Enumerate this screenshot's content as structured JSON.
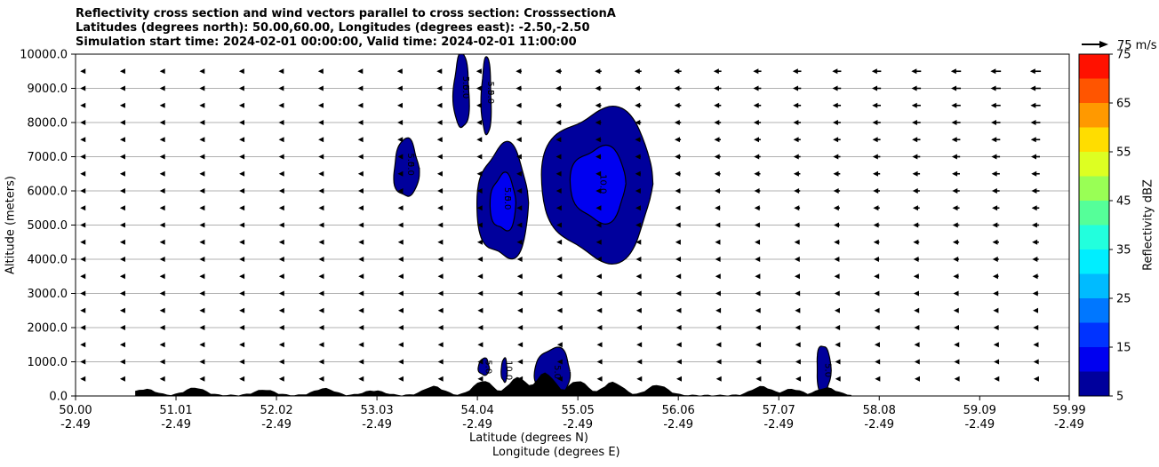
{
  "figure": {
    "title_lines": [
      "Reflectivity cross section and wind vectors parallel to cross section: CrosssectionA",
      "Latitudes (degrees north): 50.00,60.00, Longitudes (degrees east): -2.50,-2.50",
      "Simulation start time: 2024-02-01 00:00:00, Valid time: 2024-02-01 11:00:00"
    ]
  },
  "chart_data": {
    "type": "heatmap",
    "subtype": "vertical cross section (filled contours + wind vectors)",
    "xlabel_lines": [
      "Latitude (degrees N)",
      "Longitude (degrees E)"
    ],
    "ylabel": "Altitude (meters)",
    "xlim": [
      50.0,
      59.99
    ],
    "ylim": [
      0,
      10000
    ],
    "x_ticks": [
      {
        "lat": "50.00",
        "lon": "-2.49",
        "value": 50.0
      },
      {
        "lat": "51.01",
        "lon": "-2.49",
        "value": 51.01
      },
      {
        "lat": "52.02",
        "lon": "-2.49",
        "value": 52.02
      },
      {
        "lat": "53.03",
        "lon": "-2.49",
        "value": 53.03
      },
      {
        "lat": "54.04",
        "lon": "-2.49",
        "value": 54.04
      },
      {
        "lat": "55.05",
        "lon": "-2.49",
        "value": 55.05
      },
      {
        "lat": "56.06",
        "lon": "-2.49",
        "value": 56.06
      },
      {
        "lat": "57.07",
        "lon": "-2.49",
        "value": 57.07
      },
      {
        "lat": "58.08",
        "lon": "-2.49",
        "value": 58.08
      },
      {
        "lat": "59.09",
        "lon": "-2.49",
        "value": 59.09
      },
      {
        "lat": "59.99",
        "lon": "-2.49",
        "value": 59.99
      }
    ],
    "y_ticks": [
      {
        "label": "0.0",
        "value": 0
      },
      {
        "label": "1000.0",
        "value": 1000
      },
      {
        "label": "2000.0",
        "value": 2000
      },
      {
        "label": "3000.0",
        "value": 3000
      },
      {
        "label": "4000.0",
        "value": 4000
      },
      {
        "label": "5000.0",
        "value": 5000
      },
      {
        "label": "6000.0",
        "value": 6000
      },
      {
        "label": "7000.0",
        "value": 7000
      },
      {
        "label": "8000.0",
        "value": 8000
      },
      {
        "label": "9000.0",
        "value": 9000
      },
      {
        "label": "10000.0",
        "value": 10000
      }
    ],
    "grid": "horizontal",
    "colorbar": {
      "label": "Reflectivity dBZ",
      "min": 5,
      "max": 75,
      "tick_values": [
        5,
        15,
        25,
        35,
        45,
        55,
        65,
        75
      ],
      "levels": [
        5,
        10,
        15,
        20,
        25,
        30,
        35,
        40,
        45,
        50,
        55,
        60,
        65,
        70,
        75
      ],
      "colors": [
        "#00009c",
        "#0000f0",
        "#0033ff",
        "#0077ff",
        "#00bbff",
        "#00eeff",
        "#22ffdd",
        "#55ff99",
        "#99ff55",
        "#ddff22",
        "#ffdd00",
        "#ff9900",
        "#ff5500",
        "#ff1100",
        "#aa0000"
      ]
    },
    "contour_labels": [
      "5.0",
      "5.0",
      "5.0",
      "5.0",
      "10.0",
      "5.0",
      "10.0",
      "5.0",
      "5.0",
      "5.0",
      "5.0",
      "5.0",
      "5.0"
    ],
    "reflectivity_cells": [
      {
        "lat": [
          53.8,
          53.96
        ],
        "alt": [
          7800,
          10000
        ],
        "max_dbz": 10
      },
      {
        "lat": [
          54.08,
          54.18
        ],
        "alt": [
          7600,
          9900
        ],
        "max_dbz": 10
      },
      {
        "lat": [
          53.2,
          53.45
        ],
        "alt": [
          5800,
          7500
        ],
        "max_dbz": 10
      },
      {
        "lat": [
          54.04,
          54.56
        ],
        "alt": [
          4000,
          7300
        ],
        "max_dbz": 15
      },
      {
        "lat": [
          54.7,
          55.82
        ],
        "alt": [
          4000,
          8400
        ],
        "max_dbz": 15
      },
      {
        "lat": [
          54.05,
          54.16
        ],
        "alt": [
          600,
          1100
        ],
        "max_dbz": 10
      },
      {
        "lat": [
          54.28,
          54.34
        ],
        "alt": [
          400,
          1100
        ],
        "max_dbz": 10
      },
      {
        "lat": [
          54.62,
          54.98
        ],
        "alt": [
          0,
          1400
        ],
        "max_dbz": 10
      },
      {
        "lat": [
          57.45,
          57.59
        ],
        "alt": [
          0,
          1500
        ],
        "max_dbz": 10
      }
    ],
    "wind_vectors": {
      "component": "parallel to cross section",
      "direction": "toward decreasing latitude",
      "reference_key": {
        "value": 75,
        "label": "75 m/s"
      },
      "altitude_levels": [
        500,
        1000,
        1500,
        2000,
        2500,
        3000,
        3500,
        4000,
        4500,
        5000,
        5500,
        6000,
        6500,
        7000,
        7500,
        8000,
        8500,
        9000,
        9500
      ],
      "speed_range_ms": [
        0,
        40
      ]
    },
    "terrain": "black filled orography along the bottom of the section"
  }
}
